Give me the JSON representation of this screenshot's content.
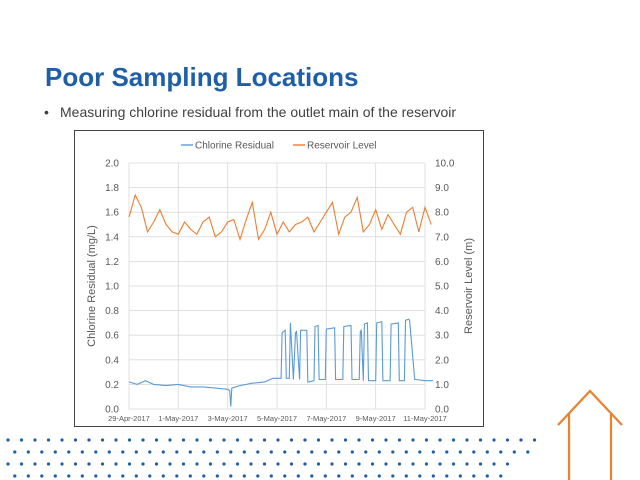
{
  "slide": {
    "title": "Poor Sampling Locations",
    "bullet": "Measuring chlorine residual from the outlet main of the reservoir",
    "colors": {
      "title": "#1f5fa8",
      "chlorine": "#5b9bd5",
      "reservoir": "#ed7d31",
      "dots": "#1f5fa8",
      "house": "#e8822e"
    },
    "decorations": [
      "dot-pattern",
      "house-outline-icon"
    ]
  },
  "chart_data": {
    "type": "line",
    "title": "",
    "xlabel": "",
    "ylabel": "Chlorine Residual (mg/L)",
    "y2label": "Reservoir Level (m)",
    "ylim": [
      0,
      2.0
    ],
    "y2lim": [
      0,
      10.0
    ],
    "xlim": [
      "29-Apr-2017",
      "11-May-2017"
    ],
    "x_tick_labels": [
      "29-Apr-2017",
      "1-May-2017",
      "3-May-2017",
      "5-May-2017",
      "7-May-2017",
      "9-May-2017",
      "11-May-2017"
    ],
    "y_tick_labels": [
      "0.0",
      "0.2",
      "0.4",
      "0.6",
      "0.8",
      "1.0",
      "1.2",
      "1.4",
      "1.6",
      "1.8",
      "2.0"
    ],
    "y2_tick_labels": [
      "0.0",
      "1.0",
      "2.0",
      "3.0",
      "4.0",
      "5.0",
      "6.0",
      "7.0",
      "8.0",
      "9.0",
      "10.0"
    ],
    "legend": {
      "placement": "top",
      "entries": [
        "Chlorine Residual",
        "Reservoir Level"
      ]
    },
    "grid": true,
    "series": [
      {
        "name": "Chlorine Residual",
        "axis": "left",
        "x": [
          "29-Apr-2017 00:00",
          "29-Apr-2017 08:00",
          "29-Apr-2017 16:00",
          "30-Apr-2017 00:00",
          "30-Apr-2017 12:00",
          "1-May-2017 00:00",
          "1-May-2017 12:00",
          "2-May-2017 00:00",
          "2-May-2017 12:00",
          "3-May-2017 00:00",
          "3-May-2017 02:00",
          "3-May-2017 03:00",
          "3-May-2017 04:00",
          "3-May-2017 12:00",
          "4-May-2017 00:00",
          "4-May-2017 12:00",
          "4-May-2017 20:00",
          "5-May-2017 00:00",
          "5-May-2017 04:00",
          "5-May-2017 05:00",
          "5-May-2017 08:00",
          "5-May-2017 09:00",
          "5-May-2017 12:00",
          "5-May-2017 13:00",
          "5-May-2017 16:00",
          "5-May-2017 18:00",
          "5-May-2017 19:00",
          "5-May-2017 22:00",
          "5-May-2017 23:00",
          "6-May-2017 05:00",
          "6-May-2017 06:00",
          "6-May-2017 07:00",
          "6-May-2017 12:00",
          "6-May-2017 13:00",
          "6-May-2017 16:00",
          "6-May-2017 17:00",
          "6-May-2017 23:00",
          "7-May-2017 00:00",
          "7-May-2017 08:00",
          "7-May-2017 09:00",
          "7-May-2017 16:00",
          "7-May-2017 17:00",
          "8-May-2017 00:00",
          "8-May-2017 01:00",
          "8-May-2017 08:00",
          "8-May-2017 09:00",
          "8-May-2017 10:00",
          "8-May-2017 12:00",
          "8-May-2017 13:00",
          "8-May-2017 16:00",
          "8-May-2017 17:00",
          "9-May-2017 00:00",
          "9-May-2017 01:00",
          "9-May-2017 06:00",
          "9-May-2017 07:00",
          "9-May-2017 14:00",
          "9-May-2017 15:00",
          "9-May-2017 22:00",
          "9-May-2017 23:00",
          "10-May-2017 04:00",
          "10-May-2017 05:00",
          "10-May-2017 08:00",
          "10-May-2017 09:00",
          "10-May-2017 14:00",
          "10-May-2017 15:00",
          "11-May-2017 00:00",
          "11-May-2017 08:00"
        ],
        "values": [
          0.22,
          0.2,
          0.23,
          0.2,
          0.19,
          0.2,
          0.18,
          0.18,
          0.17,
          0.16,
          0.15,
          0.02,
          0.17,
          0.19,
          0.21,
          0.22,
          0.25,
          0.25,
          0.25,
          0.62,
          0.64,
          0.25,
          0.25,
          0.7,
          0.24,
          0.62,
          0.63,
          0.24,
          0.64,
          0.64,
          0.22,
          0.22,
          0.23,
          0.67,
          0.68,
          0.24,
          0.24,
          0.65,
          0.66,
          0.24,
          0.24,
          0.67,
          0.68,
          0.24,
          0.24,
          0.63,
          0.64,
          0.23,
          0.69,
          0.7,
          0.23,
          0.23,
          0.7,
          0.71,
          0.23,
          0.23,
          0.69,
          0.7,
          0.23,
          0.23,
          0.72,
          0.73,
          0.72,
          0.24,
          0.24,
          0.23,
          0.23
        ]
      },
      {
        "name": "Reservoir Level",
        "axis": "right",
        "x": [
          "29-Apr-2017 00:00",
          "29-Apr-2017 06:00",
          "29-Apr-2017 12:00",
          "29-Apr-2017 18:00",
          "30-Apr-2017 00:00",
          "30-Apr-2017 06:00",
          "30-Apr-2017 12:00",
          "30-Apr-2017 18:00",
          "1-May-2017 00:00",
          "1-May-2017 06:00",
          "1-May-2017 12:00",
          "1-May-2017 18:00",
          "2-May-2017 00:00",
          "2-May-2017 06:00",
          "2-May-2017 12:00",
          "2-May-2017 18:00",
          "3-May-2017 00:00",
          "3-May-2017 06:00",
          "3-May-2017 12:00",
          "3-May-2017 18:00",
          "4-May-2017 00:00",
          "4-May-2017 06:00",
          "4-May-2017 12:00",
          "4-May-2017 18:00",
          "5-May-2017 00:00",
          "5-May-2017 06:00",
          "5-May-2017 12:00",
          "5-May-2017 18:00",
          "6-May-2017 00:00",
          "6-May-2017 06:00",
          "6-May-2017 12:00",
          "6-May-2017 18:00",
          "7-May-2017 00:00",
          "7-May-2017 06:00",
          "7-May-2017 12:00",
          "7-May-2017 18:00",
          "8-May-2017 00:00",
          "8-May-2017 06:00",
          "8-May-2017 12:00",
          "8-May-2017 18:00",
          "9-May-2017 00:00",
          "9-May-2017 06:00",
          "9-May-2017 12:00",
          "9-May-2017 18:00",
          "10-May-2017 00:00",
          "10-May-2017 06:00",
          "10-May-2017 12:00",
          "10-May-2017 18:00",
          "11-May-2017 00:00",
          "11-May-2017 06:00"
        ],
        "values": [
          7.8,
          8.7,
          8.2,
          7.2,
          7.6,
          8.1,
          7.5,
          7.2,
          7.1,
          7.6,
          7.3,
          7.1,
          7.6,
          7.8,
          7.0,
          7.2,
          7.6,
          7.7,
          6.9,
          7.7,
          8.4,
          6.9,
          7.3,
          8.0,
          7.1,
          7.6,
          7.2,
          7.5,
          7.6,
          7.8,
          7.2,
          7.6,
          8.0,
          8.4,
          7.1,
          7.8,
          8.0,
          8.6,
          7.2,
          7.5,
          8.1,
          7.3,
          7.9,
          7.5,
          7.1,
          8.0,
          8.2,
          7.2,
          8.2,
          7.5
        ]
      }
    ]
  }
}
